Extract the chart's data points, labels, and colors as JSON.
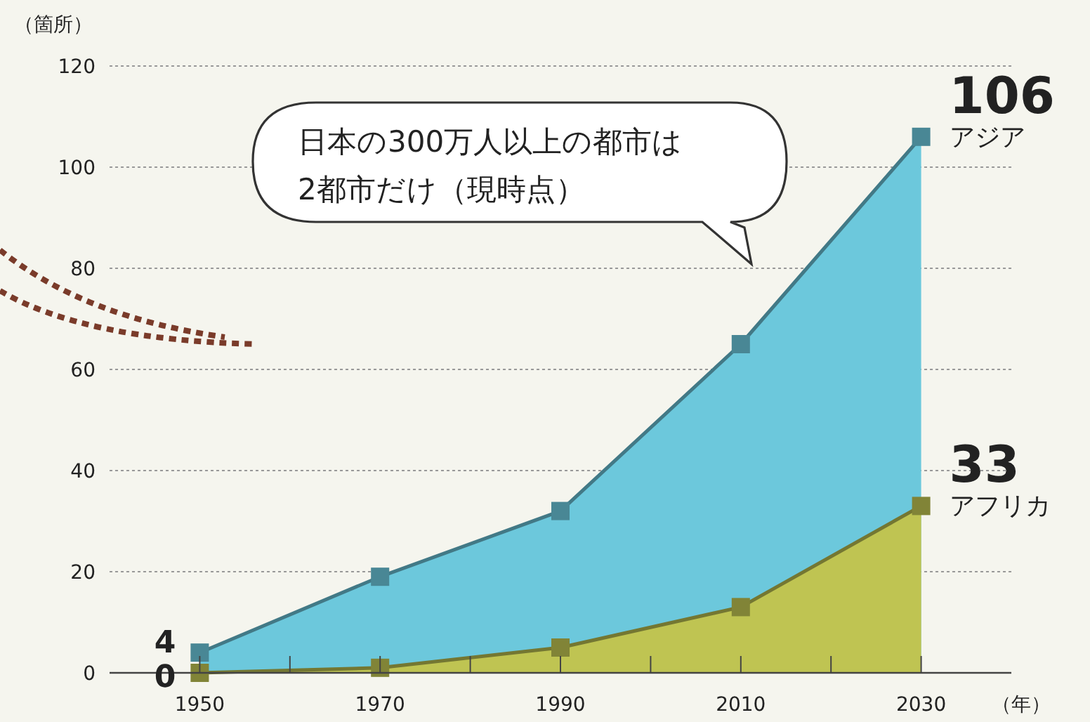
{
  "chart_data": {
    "type": "area",
    "ylabel": "（箇所）",
    "xlabel": "（年）",
    "x": [
      1950,
      1970,
      1990,
      2010,
      2030
    ],
    "series": [
      {
        "name": "アジア",
        "color": "#6cc8dc",
        "values": [
          4,
          19,
          32,
          65,
          106
        ],
        "value_labels": [
          "4",
          null,
          null,
          null,
          "106"
        ]
      },
      {
        "name": "アフリカ",
        "color": "#bfc452",
        "values": [
          0,
          1,
          5,
          13,
          33
        ],
        "value_labels": [
          "0",
          null,
          null,
          null,
          "33"
        ]
      }
    ],
    "xlim": [
      1940,
      2040
    ],
    "xticks": [
      {
        "value": 1950,
        "label": "1950"
      },
      {
        "value": 1960,
        "label": null
      },
      {
        "value": 1970,
        "label": "1970"
      },
      {
        "value": 1980,
        "label": null
      },
      {
        "value": 1990,
        "label": "1990"
      },
      {
        "value": 2000,
        "label": null
      },
      {
        "value": 2010,
        "label": "2010"
      },
      {
        "value": 2020,
        "label": null
      },
      {
        "value": 2030,
        "label": "2030"
      }
    ],
    "ylim": [
      0,
      120
    ],
    "yticks": [
      0,
      20,
      40,
      60,
      80,
      100,
      120
    ],
    "grid": "y",
    "marker": "square",
    "line_style": "solid",
    "annotations": [
      "日本の300万人以上の都市は\n2都市だけ（現時点）"
    ]
  }
}
